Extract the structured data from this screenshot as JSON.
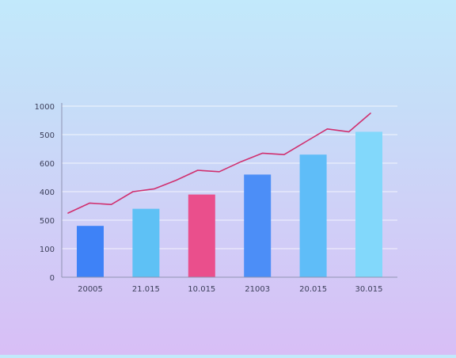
{
  "chart_data": {
    "type": "bar",
    "categories": [
      "20005",
      "21.015",
      "10.015",
      "21003",
      "20.015",
      "30.015"
    ],
    "bar_values": [
      1.8,
      2.4,
      2.9,
      3.6,
      4.3,
      5.1
    ],
    "bar_colors": [
      "#3e82f7",
      "#5ec1f5",
      "#ea4f8c",
      "#4c8ef7",
      "#5fbdf8",
      "#82d8fb"
    ],
    "line_color": "#d0306f",
    "line_values": [
      2.25,
      2.6,
      2.55,
      3.0,
      3.1,
      3.4,
      3.75,
      3.7,
      4.05,
      4.35,
      4.3,
      4.75,
      5.2,
      5.1,
      5.75
    ],
    "ylim": [
      0,
      6
    ],
    "ytick_values": [
      0,
      1,
      2,
      3,
      4,
      5,
      6
    ],
    "ytick_labels": [
      "0",
      "100",
      "500",
      "400",
      "600",
      "500",
      "1000"
    ],
    "grid": true,
    "title": "",
    "xlabel": "",
    "ylabel": ""
  }
}
